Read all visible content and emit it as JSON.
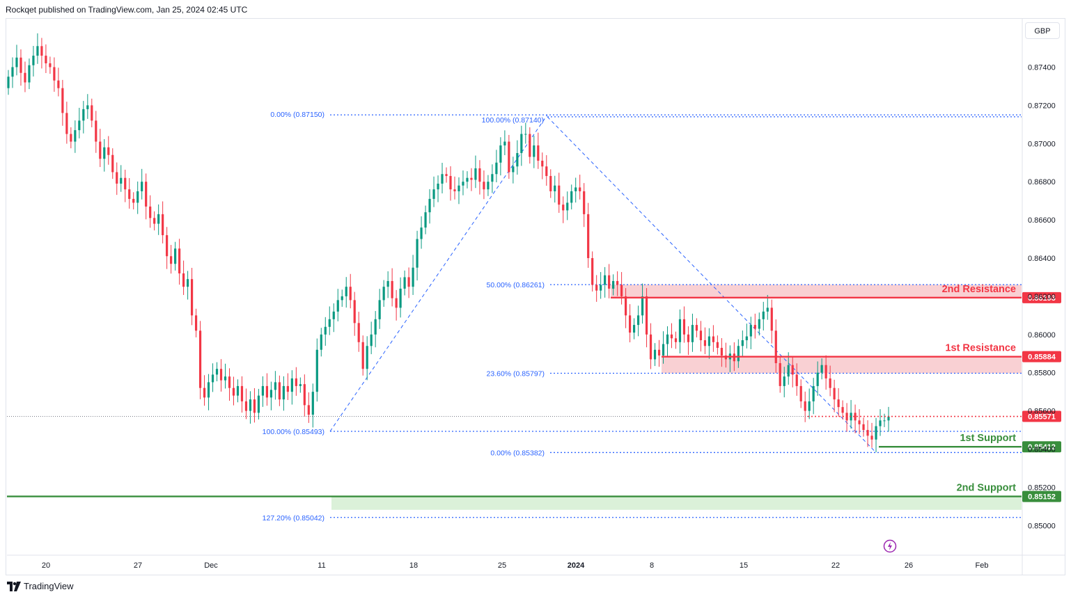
{
  "header": {
    "publisher": "Rockqet published on TradingView.com, Jan 25, 2024 02:45 UTC"
  },
  "footer": {
    "brand": "TradingView"
  },
  "currency": "GBP",
  "colors": {
    "up": "#089981",
    "down": "#f23645",
    "fib": "#2962ff",
    "resistance": "#f23645",
    "resistance_zone": "#f8c8cb",
    "support": "#388e3c",
    "support_zone": "#d7efd5",
    "grid": "#f0f3fa"
  },
  "chart_data": {
    "type": "candlestick",
    "y_ticks": [
      "0.87400",
      "0.87200",
      "0.87000",
      "0.86800",
      "0.86600",
      "0.86400",
      "0.86200",
      "0.86000",
      "0.85800",
      "0.85600",
      "0.85400",
      "0.85200",
      "0.85000"
    ],
    "x_ticks": [
      "20",
      "27",
      "Dec",
      "11",
      "18",
      "25",
      "2024",
      "8",
      "15",
      "22",
      "26",
      "Feb"
    ],
    "ylim": [
      0.8495,
      0.876
    ],
    "fib_levels": [
      {
        "label": "0.00% (0.87150)",
        "price": 0.8715
      },
      {
        "label": "100.00% (0.87140)",
        "price": 0.8714
      },
      {
        "label": "50.00% (0.86261)",
        "price": 0.86261
      },
      {
        "label": "23.60% (0.85797)",
        "price": 0.85797
      },
      {
        "label": "100.00% (0.85493)",
        "price": 0.85493
      },
      {
        "label": "0.00% (0.85382)",
        "price": 0.85382
      },
      {
        "label": "127.20% (0.85042)",
        "price": 0.85042
      }
    ],
    "levels": [
      {
        "name": "2nd Resistance",
        "price": 0.86193,
        "tag": "0.86193",
        "kind": "resistance"
      },
      {
        "name": "1st Resistance",
        "price": 0.85884,
        "tag": "0.85884",
        "kind": "resistance"
      },
      {
        "name": "1st Support",
        "price": 0.85412,
        "tag": "0.85412",
        "kind": "support"
      },
      {
        "name": "2nd Support",
        "price": 0.85152,
        "tag": "0.85152",
        "kind": "support"
      }
    ],
    "current_price": {
      "price": 0.85571,
      "tag": "0.85571"
    },
    "zones": [
      {
        "kind": "resistance",
        "from": 0.86193,
        "to": 0.86261
      },
      {
        "kind": "resistance",
        "from": 0.85797,
        "to": 0.85884
      },
      {
        "kind": "support",
        "from": 0.85082,
        "to": 0.85152
      }
    ],
    "candles_close": [
      0.8735,
      0.874,
      0.8745,
      0.8737,
      0.8732,
      0.8741,
      0.8746,
      0.8751,
      0.8746,
      0.8742,
      0.874,
      0.8733,
      0.8729,
      0.8716,
      0.8705,
      0.8701,
      0.8707,
      0.8712,
      0.8718,
      0.872,
      0.8712,
      0.8701,
      0.8692,
      0.8698,
      0.8694,
      0.8685,
      0.8679,
      0.8682,
      0.8676,
      0.8671,
      0.8669,
      0.8675,
      0.868,
      0.8667,
      0.8661,
      0.8658,
      0.8663,
      0.8652,
      0.8641,
      0.8637,
      0.8645,
      0.8632,
      0.8625,
      0.8629,
      0.861,
      0.8602,
      0.8572,
      0.8567,
      0.8575,
      0.8579,
      0.8582,
      0.8576,
      0.8578,
      0.8572,
      0.8568,
      0.8573,
      0.8565,
      0.856,
      0.8566,
      0.8559,
      0.8568,
      0.8573,
      0.8567,
      0.8571,
      0.8575,
      0.8566,
      0.8573,
      0.857,
      0.8577,
      0.8573,
      0.8574,
      0.8563,
      0.8558,
      0.857,
      0.8592,
      0.86,
      0.8604,
      0.8608,
      0.8612,
      0.8618,
      0.862,
      0.8625,
      0.8618,
      0.8606,
      0.8596,
      0.8582,
      0.8594,
      0.86,
      0.8608,
      0.8618,
      0.8625,
      0.8628,
      0.8619,
      0.8614,
      0.8624,
      0.863,
      0.8625,
      0.8635,
      0.865,
      0.8656,
      0.8664,
      0.8671,
      0.8676,
      0.8679,
      0.8684,
      0.8683,
      0.8676,
      0.8675,
      0.8678,
      0.868,
      0.8682,
      0.8681,
      0.8687,
      0.868,
      0.8676,
      0.868,
      0.8684,
      0.869,
      0.8699,
      0.8701,
      0.8685,
      0.8688,
      0.8695,
      0.8705,
      0.8705,
      0.8693,
      0.8699,
      0.8691,
      0.8688,
      0.8683,
      0.8675,
      0.8678,
      0.8668,
      0.8665,
      0.8669,
      0.8675,
      0.8677,
      0.8675,
      0.8663,
      0.864,
      0.8626,
      0.8623,
      0.8626,
      0.8631,
      0.8624,
      0.8628,
      0.8626,
      0.862,
      0.861,
      0.8601,
      0.8605,
      0.861,
      0.862,
      0.86,
      0.8587,
      0.8592,
      0.8589,
      0.8595,
      0.86,
      0.8598,
      0.8596,
      0.8608,
      0.86,
      0.8596,
      0.8605,
      0.8602,
      0.8597,
      0.8594,
      0.8599,
      0.8596,
      0.8593,
      0.8589,
      0.8587,
      0.859,
      0.8586,
      0.8594,
      0.8597,
      0.8599,
      0.8605,
      0.8603,
      0.8608,
      0.8612,
      0.8614,
      0.8602,
      0.8585,
      0.8573,
      0.8578,
      0.8584,
      0.8579,
      0.8573,
      0.8565,
      0.856,
      0.8565,
      0.8573,
      0.858,
      0.8584,
      0.8577,
      0.8572,
      0.8566,
      0.8562,
      0.8559,
      0.8555,
      0.8559,
      0.8555,
      0.8553,
      0.855,
      0.8547,
      0.8545,
      0.8552,
      0.8555,
      0.8555,
      0.8557
    ]
  }
}
